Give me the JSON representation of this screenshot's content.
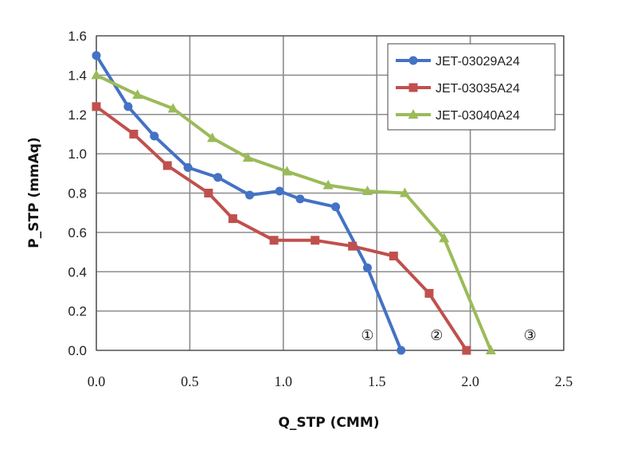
{
  "chart_data": {
    "type": "line",
    "title": "",
    "xlabel": "Q_STP (CMM)",
    "ylabel": "P_STP (mmAq)",
    "xlim": [
      0,
      2.5
    ],
    "ylim": [
      0,
      1.6
    ],
    "x_ticks": [
      "0.0",
      "0.5",
      "1.0",
      "1.5",
      "2.0",
      "2.5"
    ],
    "y_ticks": [
      "0.0",
      "0.2",
      "0.4",
      "0.6",
      "0.8",
      "1.0",
      "1.2",
      "1.4",
      "1.6"
    ],
    "x_tick_values": [
      0,
      0.5,
      1.0,
      1.5,
      2.0,
      2.5
    ],
    "y_tick_values": [
      0,
      0.2,
      0.4,
      0.6,
      0.8,
      1.0,
      1.2,
      1.4,
      1.6
    ],
    "grid": true,
    "legend_position": "top-right",
    "series": [
      {
        "name": "JET-03029A24",
        "color": "#4472C4",
        "marker": "circle",
        "x": [
          0.0,
          0.17,
          0.31,
          0.49,
          0.65,
          0.82,
          0.98,
          1.09,
          1.28,
          1.45,
          1.63
        ],
        "y": [
          1.5,
          1.24,
          1.09,
          0.93,
          0.88,
          0.79,
          0.81,
          0.77,
          0.73,
          0.42,
          0.0
        ]
      },
      {
        "name": "JET-03035A24",
        "color": "#C0504D",
        "marker": "square",
        "x": [
          0.0,
          0.2,
          0.38,
          0.6,
          0.73,
          0.95,
          1.17,
          1.37,
          1.59,
          1.78,
          1.98
        ],
        "y": [
          1.24,
          1.1,
          0.94,
          0.8,
          0.67,
          0.56,
          0.56,
          0.53,
          0.48,
          0.29,
          0.0
        ]
      },
      {
        "name": "JET-03040A24",
        "color": "#9BBB59",
        "marker": "triangle",
        "x": [
          0.0,
          0.22,
          0.41,
          0.62,
          0.81,
          1.02,
          1.24,
          1.45,
          1.65,
          1.86,
          2.11
        ],
        "y": [
          1.4,
          1.3,
          1.23,
          1.08,
          0.98,
          0.91,
          0.84,
          0.81,
          0.8,
          0.57,
          0.0
        ]
      }
    ],
    "annotations": [
      {
        "text": "①",
        "x": 1.45,
        "y": 0.06
      },
      {
        "text": "②",
        "x": 1.82,
        "y": 0.06
      },
      {
        "text": "③",
        "x": 2.32,
        "y": 0.06
      }
    ]
  }
}
